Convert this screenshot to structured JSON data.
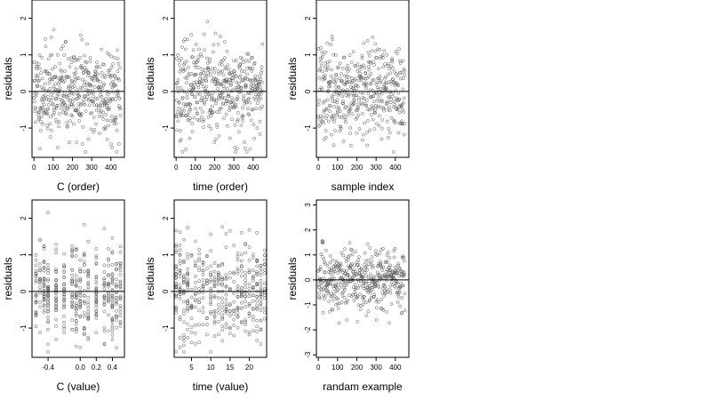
{
  "chart_data": [
    {
      "type": "scatter",
      "xlabel": "C (order)",
      "ylabel": "residuals",
      "xlim": [
        -10,
        470
      ],
      "ylim": [
        -1.8,
        2.5
      ],
      "xticks": [
        0,
        100,
        200,
        300,
        400
      ],
      "yticks": [
        -1,
        0,
        1,
        2
      ],
      "hline": 0,
      "x_kind": "index",
      "n_points": 450,
      "seed": 11
    },
    {
      "type": "scatter",
      "xlabel": "time (order)",
      "ylabel": "residuals",
      "xlim": [
        -10,
        470
      ],
      "ylim": [
        -1.8,
        2.5
      ],
      "xticks": [
        0,
        100,
        200,
        300,
        400
      ],
      "yticks": [
        -1,
        0,
        1,
        2
      ],
      "hline": 0,
      "x_kind": "index",
      "n_points": 450,
      "seed": 23
    },
    {
      "type": "scatter",
      "xlabel": "sample index",
      "ylabel": "residuals",
      "xlim": [
        -10,
        470
      ],
      "ylim": [
        -1.8,
        2.5
      ],
      "xticks": [
        0,
        100,
        200,
        300,
        400
      ],
      "yticks": [
        -1,
        0,
        1,
        2
      ],
      "hline": 0,
      "x_kind": "index",
      "n_points": 450,
      "seed": 37
    },
    {
      "type": "scatter",
      "xlabel": "C (value)",
      "ylabel": "residuals",
      "xlim": [
        -0.6,
        0.55
      ],
      "ylim": [
        -1.8,
        2.5
      ],
      "xticks": [
        -0.4,
        0.0,
        0.2,
        0.4
      ],
      "xtick_labels": [
        "-0.4",
        "0.0",
        "0.2",
        "0.4"
      ],
      "yticks": [
        -1,
        0,
        1,
        2
      ],
      "hline": 0,
      "x_kind": "levels",
      "levels": [
        -0.55,
        -0.5,
        -0.45,
        -0.4,
        -0.3,
        -0.2,
        -0.1,
        -0.05,
        0.0,
        0.05,
        0.1,
        0.2,
        0.3,
        0.35,
        0.4,
        0.45,
        0.5
      ],
      "n_points": 450,
      "seed": 51
    },
    {
      "type": "scatter",
      "xlabel": "time (value)",
      "ylabel": "residuals",
      "xlim": [
        0.5,
        24.5
      ],
      "ylim": [
        -1.8,
        2.5
      ],
      "xticks": [
        5,
        10,
        15,
        20
      ],
      "yticks": [
        -1,
        0,
        1,
        2
      ],
      "hline": 0,
      "x_kind": "levels",
      "levels": [
        1,
        2,
        3,
        4,
        5,
        6,
        7,
        8,
        9,
        10,
        11,
        12,
        13,
        14,
        15,
        16,
        17,
        18,
        19,
        20,
        21,
        22,
        23,
        24
      ],
      "n_points": 450,
      "seed": 67
    },
    {
      "type": "scatter",
      "xlabel": "randam example",
      "ylabel": "residuals",
      "xlim": [
        -10,
        470
      ],
      "ylim": [
        -3.1,
        3.2
      ],
      "xticks": [
        0,
        100,
        200,
        300,
        400
      ],
      "yticks": [
        -3,
        -2,
        -1,
        0,
        1,
        2,
        3
      ],
      "hline": 0,
      "x_kind": "index",
      "n_points": 450,
      "seed": 83
    }
  ]
}
